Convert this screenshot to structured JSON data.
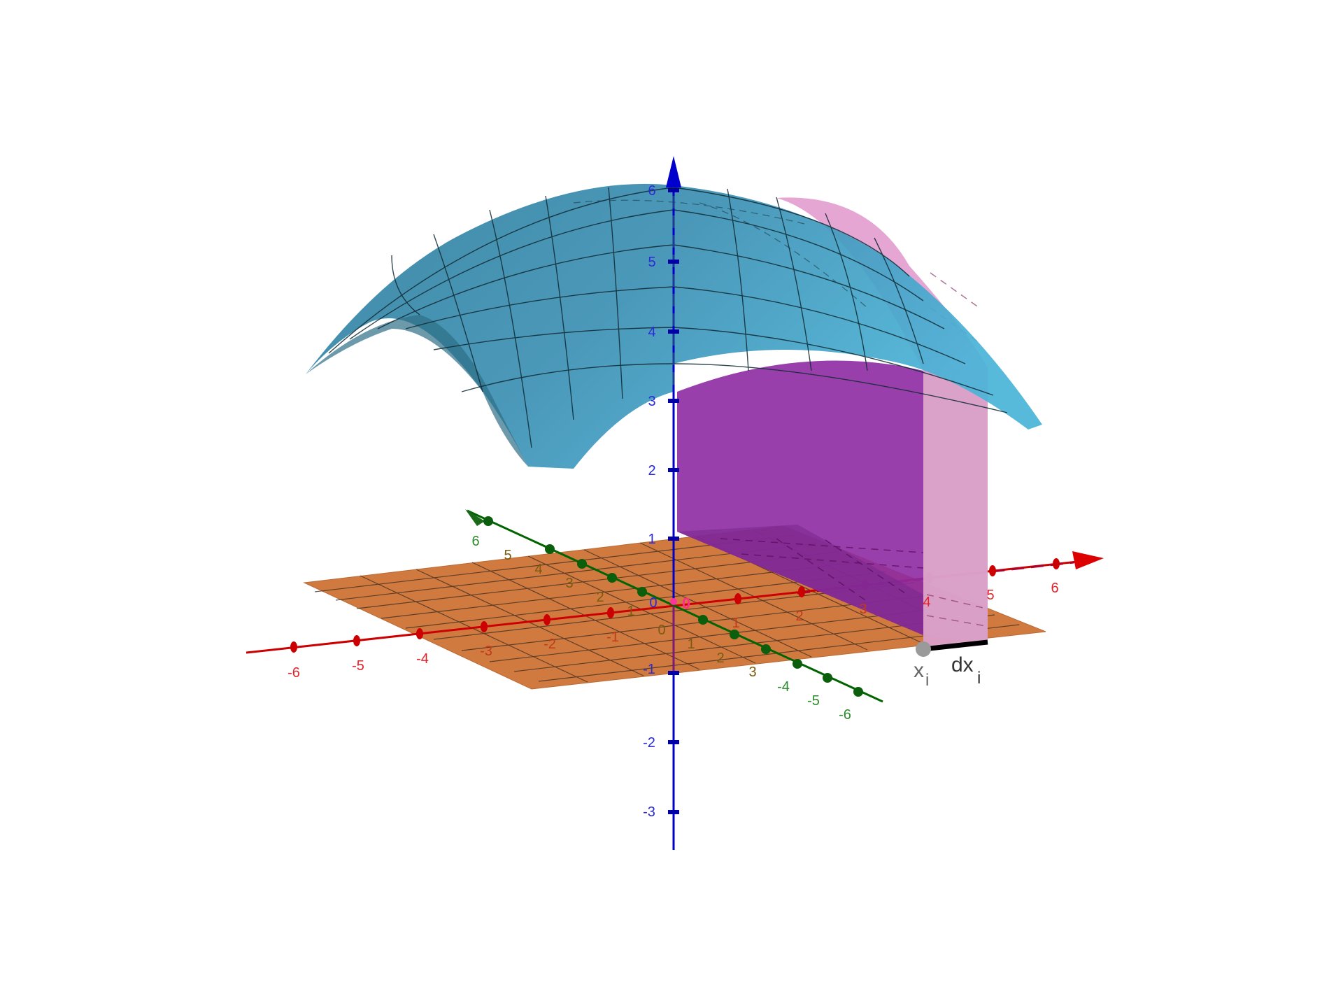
{
  "axes": {
    "x_ticks": [
      "-6",
      "-5",
      "-4",
      "-3",
      "-2",
      "-1",
      "1",
      "2",
      "3",
      "4",
      "5",
      "6"
    ],
    "y_ticks": [
      "6",
      "5",
      "4",
      "3",
      "2",
      "1",
      "0",
      "1",
      "2",
      "3",
      "-4",
      "-5",
      "-6"
    ],
    "z_ticks": [
      "6",
      "5",
      "4",
      "3",
      "2",
      "1",
      "0",
      "-1",
      "-2",
      "-3"
    ],
    "origin_label": "0",
    "colors": {
      "x": "#cc0000",
      "y": "#006400",
      "z": "#0000cc"
    }
  },
  "annotations": {
    "point_label": "x",
    "point_subscript": "i",
    "width_label": "dx",
    "width_subscript": "i"
  },
  "surfaces": {
    "dome_color": "#3a96b8",
    "slab_color": "#9a2fa8",
    "thin_slab_color": "#e090c8",
    "base_plane_color": "#d17a3f"
  }
}
